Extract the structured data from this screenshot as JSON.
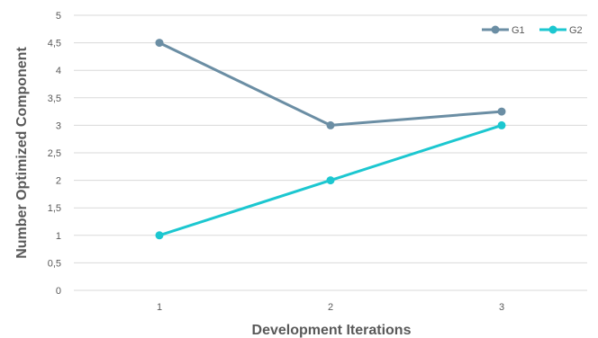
{
  "chart_data": {
    "type": "line",
    "title": "",
    "xlabel": "Development Iterations",
    "ylabel": "Number Optimized Component",
    "categories": [
      "1",
      "2",
      "3"
    ],
    "ylim": [
      0,
      5
    ],
    "yticks": [
      "0",
      "0,5",
      "1",
      "1,5",
      "2",
      "2,5",
      "3",
      "3,5",
      "4",
      "4,5",
      "5"
    ],
    "grid": true,
    "legend_position": "top-right",
    "series": [
      {
        "name": "G1",
        "values": [
          4.5,
          3.0,
          3.25
        ],
        "color": "#6b8ea4"
      },
      {
        "name": "G2",
        "values": [
          1.0,
          2.0,
          3.0
        ],
        "color": "#1cc7d0"
      }
    ]
  }
}
